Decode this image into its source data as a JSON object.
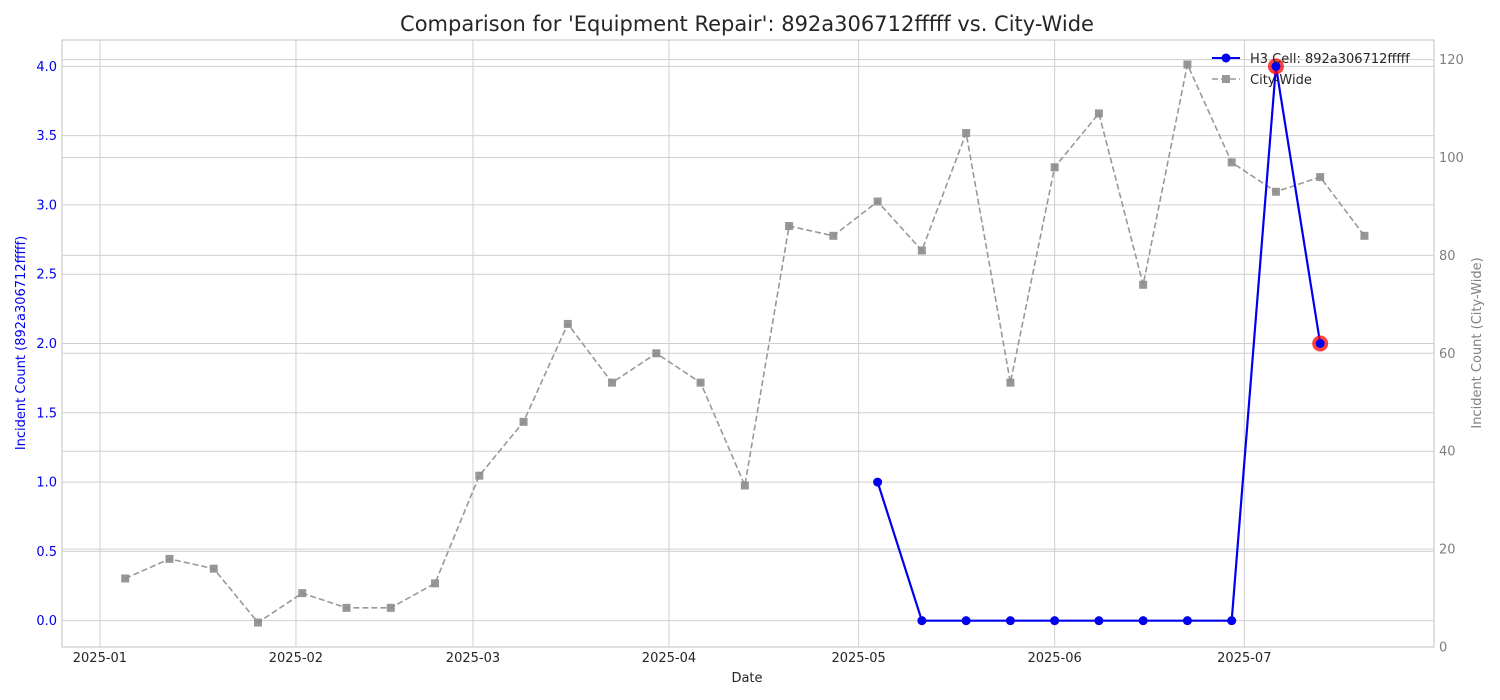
{
  "chart_data": {
    "type": "line",
    "title": "Comparison for 'Equipment Repair': 892a306712fffff vs. City-Wide",
    "xlabel": "Date",
    "ylabel_left": "Incident Count (892a306712fffff)",
    "ylabel_right": "Incident Count (City-Wide)",
    "ylim_left": [
      -0.19,
      4.19
    ],
    "ylim_right": [
      0,
      124
    ],
    "xlim": [
      "2024-12-26",
      "2025-07-31"
    ],
    "yticks_left": [
      0.0,
      0.5,
      1.0,
      1.5,
      2.0,
      2.5,
      3.0,
      3.5,
      4.0
    ],
    "yticks_left_labels": [
      "0.0",
      "0.5",
      "1.0",
      "1.5",
      "2.0",
      "2.5",
      "3.0",
      "3.5",
      "4.0"
    ],
    "yticks_right": [
      0,
      20,
      40,
      60,
      80,
      100,
      120
    ],
    "yticks_right_labels": [
      "0",
      "20",
      "40",
      "60",
      "80",
      "100",
      "120"
    ],
    "xticks": [
      "2025-01-01",
      "2025-02-01",
      "2025-03-01",
      "2025-04-01",
      "2025-05-01",
      "2025-06-01",
      "2025-07-01"
    ],
    "xtick_labels": [
      "2025-01",
      "2025-02",
      "2025-03",
      "2025-04",
      "2025-05",
      "2025-06",
      "2025-07"
    ],
    "grid": true,
    "legend_position": "top-right",
    "series": [
      {
        "name": "H3 Cell: 892a306712fffff",
        "axis": "left",
        "color": "#0000ee",
        "style": "solid",
        "marker": "circle",
        "x": [
          "2025-05-04",
          "2025-05-11",
          "2025-05-18",
          "2025-05-25",
          "2025-06-01",
          "2025-06-08",
          "2025-06-15",
          "2025-06-22",
          "2025-06-29",
          "2025-07-06",
          "2025-07-13"
        ],
        "y": [
          1,
          0,
          0,
          0,
          0,
          0,
          0,
          0,
          0,
          4,
          2
        ],
        "highlighted": [
          false,
          false,
          false,
          false,
          false,
          false,
          false,
          false,
          false,
          true,
          true
        ]
      },
      {
        "name": "City-Wide",
        "axis": "right",
        "color": "#999999",
        "style": "dashed",
        "marker": "square",
        "x": [
          "2025-01-05",
          "2025-01-12",
          "2025-01-19",
          "2025-01-26",
          "2025-02-02",
          "2025-02-09",
          "2025-02-16",
          "2025-02-23",
          "2025-03-02",
          "2025-03-09",
          "2025-03-16",
          "2025-03-23",
          "2025-03-30",
          "2025-04-06",
          "2025-04-13",
          "2025-04-20",
          "2025-04-27",
          "2025-05-04",
          "2025-05-11",
          "2025-05-18",
          "2025-05-25",
          "2025-06-01",
          "2025-06-08",
          "2025-06-15",
          "2025-06-22",
          "2025-06-29",
          "2025-07-06",
          "2025-07-13",
          "2025-07-20"
        ],
        "y": [
          14,
          18,
          16,
          5,
          11,
          8,
          8,
          13,
          35,
          46,
          66,
          54,
          60,
          54,
          33,
          86,
          84,
          91,
          81,
          105,
          54,
          98,
          109,
          74,
          119,
          99,
          93,
          96,
          84
        ]
      }
    ]
  }
}
